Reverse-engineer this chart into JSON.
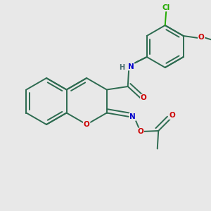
{
  "background_color": "#e8e8e8",
  "bond_color": "#2d6b50",
  "atom_colors": {
    "O": "#cc0000",
    "N": "#0000cc",
    "Cl": "#22aa00",
    "H": "#4a7070",
    "C": "#2d6b50"
  },
  "figsize": [
    3.0,
    3.0
  ],
  "dpi": 100
}
